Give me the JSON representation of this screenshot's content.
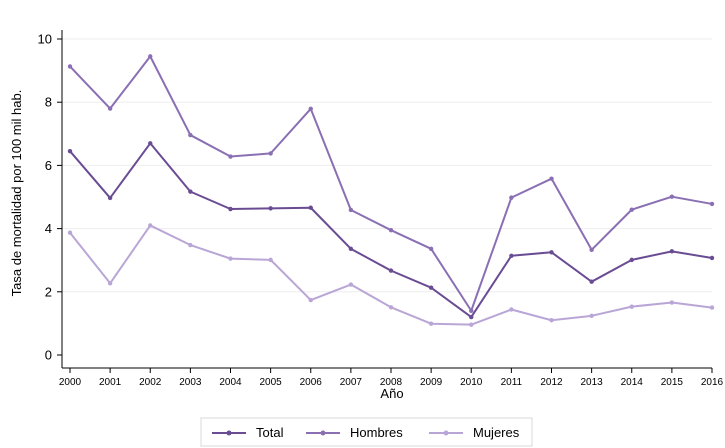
{
  "chart_data": {
    "type": "line",
    "xlabel": "Año",
    "ylabel": "Tasa de mortalidad por 100 mil hab.",
    "ylim": [
      0,
      10
    ],
    "yticks": [
      0,
      2,
      4,
      6,
      8,
      10
    ],
    "grid": true,
    "legend_position": "bottom",
    "x": [
      "2000",
      "2001",
      "2002",
      "2003",
      "2004",
      "2005",
      "2006",
      "2007",
      "2008",
      "2009",
      "2010",
      "2011",
      "2012",
      "2013",
      "2014",
      "2015",
      "2016"
    ],
    "series": [
      {
        "name": "Total",
        "color": "#6a4c93",
        "values": [
          6.45,
          4.97,
          6.7,
          5.17,
          4.62,
          4.64,
          4.66,
          3.36,
          2.67,
          2.13,
          1.2,
          3.14,
          3.25,
          2.32,
          3.01,
          3.28,
          3.07
        ]
      },
      {
        "name": "Hombres",
        "color": "#8a6fb3",
        "values": [
          9.13,
          7.8,
          9.45,
          6.96,
          6.28,
          6.38,
          7.79,
          4.59,
          3.95,
          3.36,
          1.4,
          4.98,
          5.58,
          3.33,
          4.6,
          5.01,
          4.78
        ]
      },
      {
        "name": "Mujeres",
        "color": "#b9a6d6",
        "values": [
          3.87,
          2.27,
          4.1,
          3.48,
          3.05,
          3.01,
          1.74,
          2.23,
          1.51,
          0.99,
          0.96,
          1.44,
          1.1,
          1.24,
          1.53,
          1.66,
          1.5
        ]
      }
    ]
  }
}
